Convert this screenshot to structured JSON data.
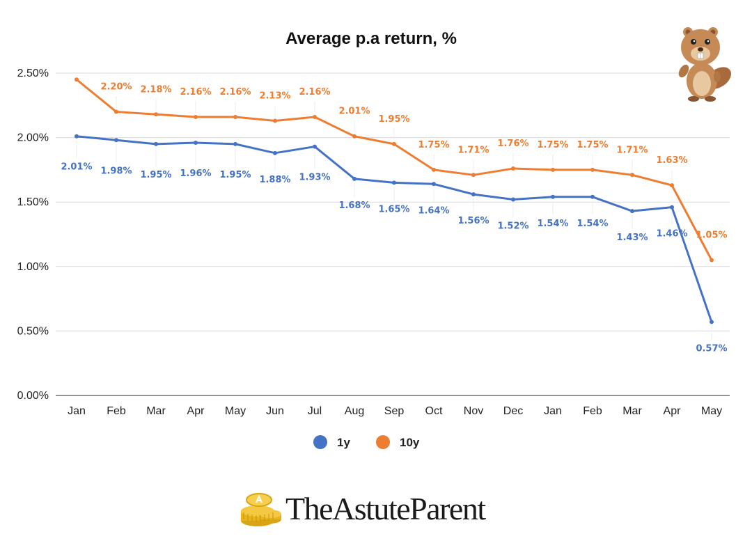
{
  "chart_data": {
    "type": "line",
    "title": "Average p.a return, %",
    "categories": [
      "Jan",
      "Feb",
      "Mar",
      "Apr",
      "May",
      "Jun",
      "Jul",
      "Aug",
      "Sep",
      "Oct",
      "Nov",
      "Dec",
      "Jan",
      "Feb",
      "Mar",
      "Apr",
      "May"
    ],
    "y_ticks": [
      "0.00%",
      "0.50%",
      "1.00%",
      "1.50%",
      "2.00%",
      "2.50%"
    ],
    "ylim": [
      0,
      2.5
    ],
    "grid": true,
    "legend_position": "bottom",
    "series": [
      {
        "name": "1y",
        "color": "#4472c4",
        "values": [
          2.01,
          1.98,
          1.95,
          1.96,
          1.95,
          1.88,
          1.93,
          1.68,
          1.65,
          1.64,
          1.56,
          1.52,
          1.54,
          1.54,
          1.43,
          1.46,
          0.57
        ],
        "labels": [
          "2.01%",
          "1.98%",
          "1.95%",
          "1.96%",
          "1.95%",
          "1.88%",
          "1.93%",
          "1.68%",
          "1.65%",
          "1.64%",
          "1.56%",
          "1.52%",
          "1.54%",
          "1.54%",
          "1.43%",
          "1.46%",
          "0.57%"
        ]
      },
      {
        "name": "10y",
        "color": "#ed7d31",
        "values": [
          2.45,
          2.2,
          2.18,
          2.16,
          2.16,
          2.13,
          2.16,
          2.01,
          1.95,
          1.75,
          1.71,
          1.76,
          1.75,
          1.75,
          1.71,
          1.63,
          1.05
        ],
        "labels": [
          "",
          "2.20%",
          "2.18%",
          "2.16%",
          "2.16%",
          "2.13%",
          "2.16%",
          "2.01%",
          "1.95%",
          "1.75%",
          "1.71%",
          "1.76%",
          "1.75%",
          "1.75%",
          "1.71%",
          "1.63%",
          "1.05%"
        ]
      }
    ]
  },
  "brand": {
    "name": "TheAstuteParent",
    "coin_icon": "coin-stack-icon",
    "mascot_icon": "beaver-mascot-icon"
  }
}
